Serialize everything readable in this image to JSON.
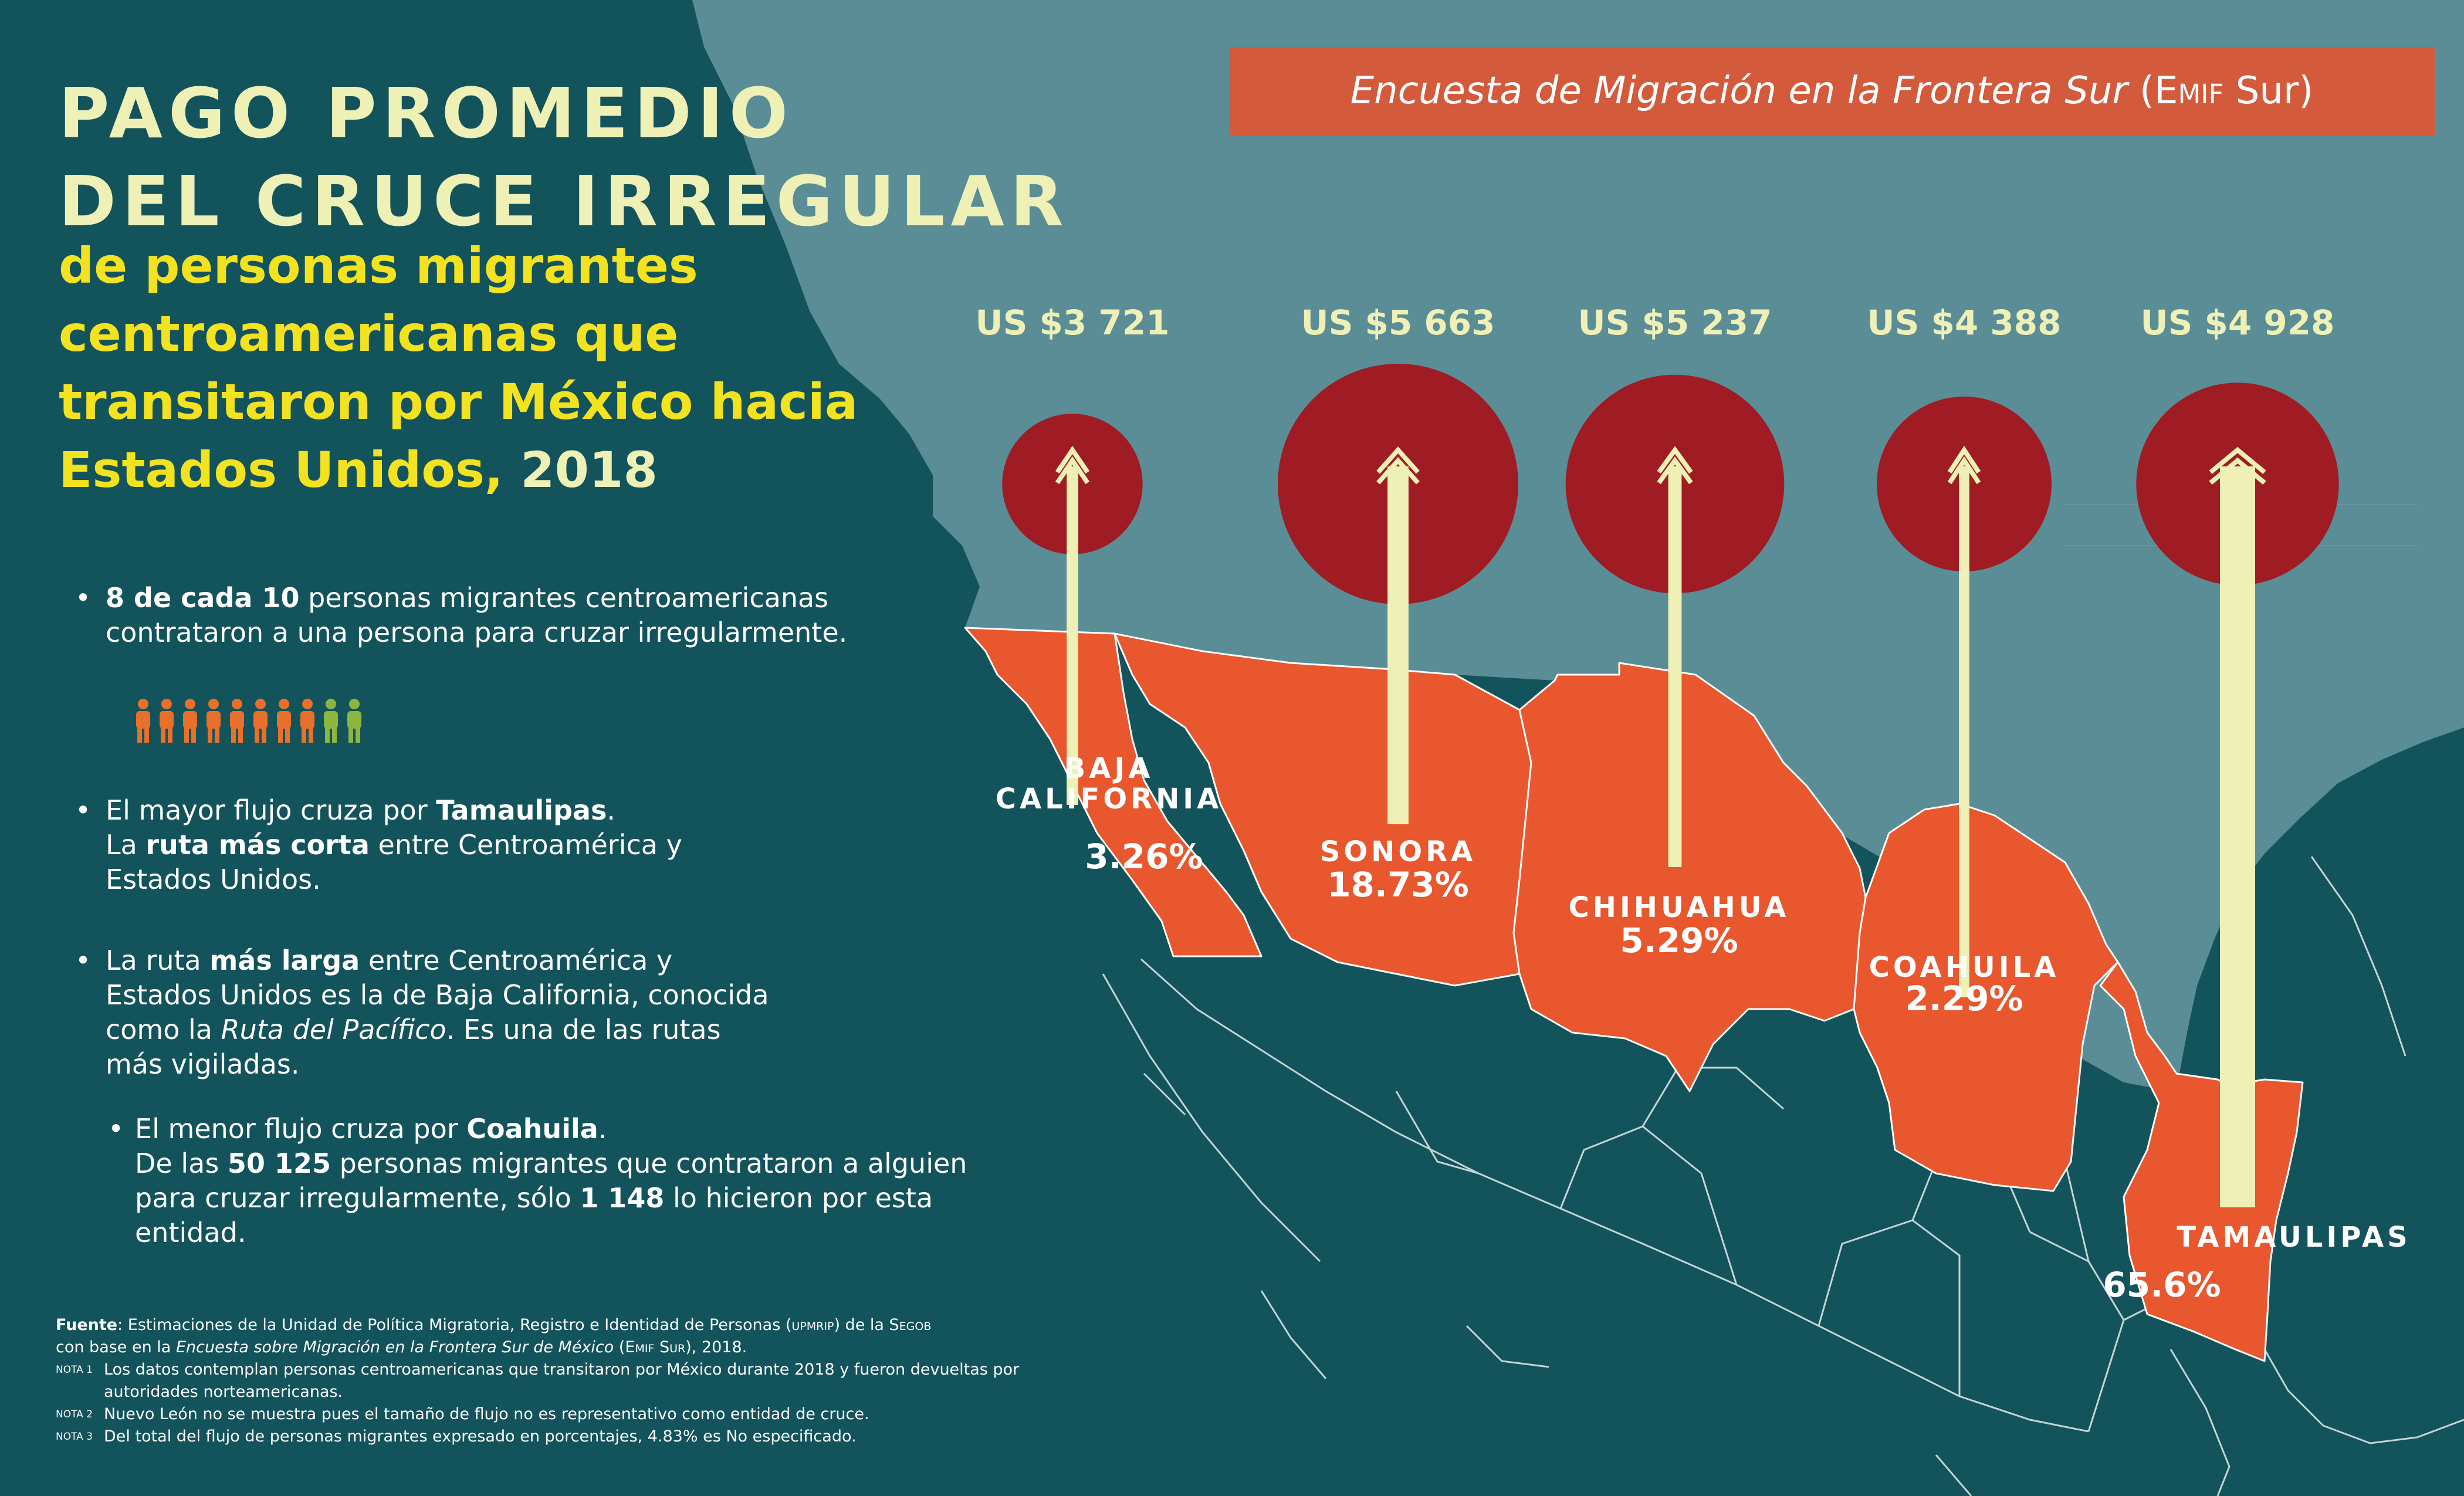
{
  "title": {
    "line1": "PAGO PROMEDIO",
    "line2": "DEL CRUCE IRREGULAR",
    "subtitle": "de personas migrantes centroamericanas que transitaron por México hacia Estados Unidos,",
    "year": "2018"
  },
  "banner": {
    "italic": "Encuesta de Migración en la Frontera Sur",
    "rest_open": "(",
    "small_caps": "Emif",
    "rest_close": "Sur)"
  },
  "bullets": [
    {
      "b1": "8 de cada 10",
      "t1": "personas migrantes centroamericanas contrataron  a una persona para cruzar irregularmente."
    },
    {
      "t1": "El mayor flujo cruza por",
      "b1": "Tamaulipas",
      "t2": ".",
      "t3": "La",
      "b2": "ruta más corta",
      "t4": "entre Centroamérica y Estados Unidos."
    },
    {
      "t1": "La ruta",
      "b1": "más larga",
      "t2": "entre Centroamérica y Estados Unidos es la de Baja California, conocida como la",
      "i1": "Ruta del Pacífico",
      "t3": ". Es una de las rutas más vigiladas."
    },
    {
      "t1": "El menor flujo cruza por",
      "b1": "Coahuila",
      "t2": ".",
      "t3": "De las",
      "b2": "50 125",
      "t4": "personas migrantes que contrataron a alguien para cruzar irregularmente, sólo",
      "b3": "1 148",
      "t5": "lo hicieron por esta entidad."
    }
  ],
  "people_icons": {
    "contracted": 8,
    "total": 10,
    "color_contracted": "#e8702a",
    "color_other": "#8db53f"
  },
  "source": {
    "label": "Fuente",
    "text1": ": Estimaciones de la Unidad de Política Migratoria, Registro e Identidad de Personas (",
    "abbr1": "upmrip",
    "text2": ") de la",
    "abbr2": "Segob",
    "text3": "con base en la",
    "italic": "Encuesta sobre Migración en la Frontera Sur de México",
    "text4": "(",
    "abbr3": "Emif Sur",
    "text5": "), 2018.",
    "notes": [
      {
        "label": "NOTA 1",
        "text": "Los datos contemplan personas centroamericanas que transitaron por México durante 2018 y fueron devueltas por autoridades norteamericanas."
      },
      {
        "label": "NOTA 2",
        "text": "Nuevo León no se muestra pues el tamaño de flujo no es representativo como entidad de cruce."
      },
      {
        "label": "NOTA 3",
        "text": "Del total del flujo de personas migrantes expresado en porcentajes, 4.83% es No especificado."
      }
    ]
  },
  "colors": {
    "ocean": "#13535b",
    "land_us": "#5a8d96",
    "state_fill": "#e8572d",
    "circle": "#a01c25",
    "arrow": "#eef0b6",
    "title_light": "#eef0b6",
    "title_yellow": "#f2e21f",
    "banner": "#d45a3c"
  },
  "chart_data": {
    "type": "bubble",
    "title": "PAGO PROMEDIO DEL CRUCE IRREGULAR",
    "categories": [
      "BAJA CALIFORNIA",
      "SONORA",
      "CHIHUAHUA",
      "COAHUILA",
      "TAMAULIPAS"
    ],
    "category_lines": [
      [
        "BAJA",
        "CALIFORNIA"
      ],
      [
        "SONORA"
      ],
      [
        "CHIHUAHUA"
      ],
      [
        "COAHUILA"
      ],
      [
        "TAMAULIPAS"
      ]
    ],
    "series": [
      {
        "values": [
          3721,
          5663,
          5237,
          4388,
          4928
        ],
        "labels": [
          "US $3 721",
          "US $5 663",
          "US $5 237",
          "US $4 388",
          "US $4 928"
        ]
      },
      {
        "values": [
          3.26,
          18.73,
          5.29,
          2.29,
          65.6
        ],
        "labels": [
          "3.26%",
          "18.73%",
          "5.29%",
          "2.29%",
          "65.6%"
        ]
      }
    ]
  }
}
